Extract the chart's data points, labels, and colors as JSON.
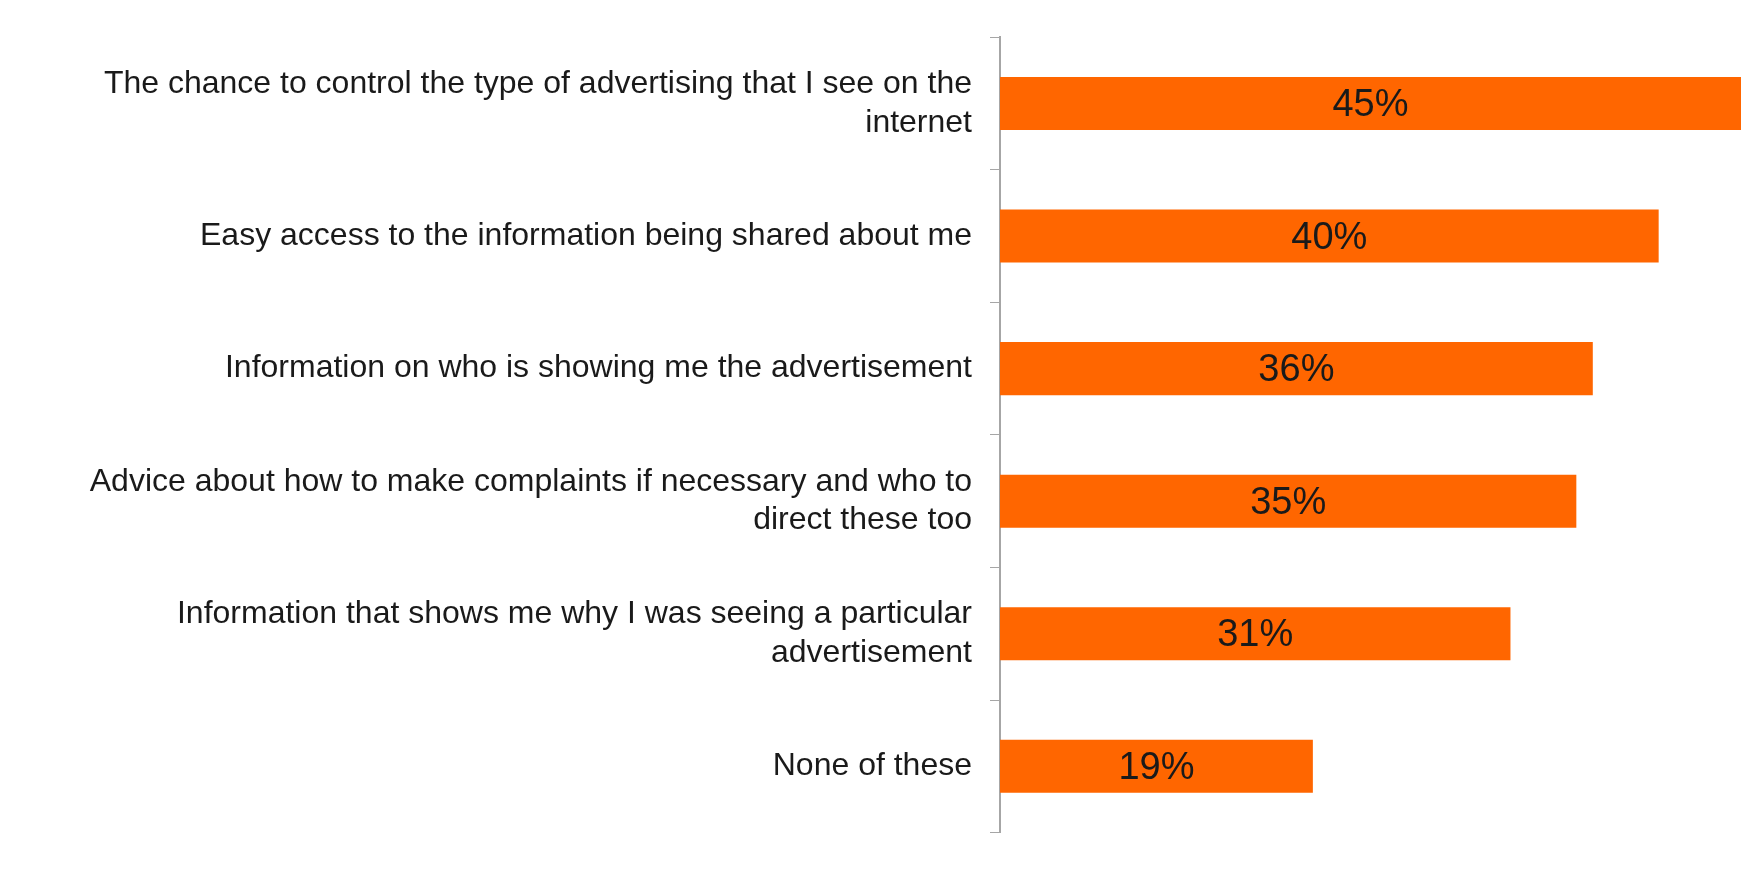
{
  "chart_data": {
    "type": "bar",
    "orientation": "horizontal",
    "categories": [
      "The chance to control the type of advertising that I see on the internet",
      "Easy access to the information being shared about me",
      "Information on who is showing me the advertisement",
      "Advice about how to make complaints if necessary and who to direct these too",
      "Information that shows me why I was seeing a particular advertisement",
      "None of these"
    ],
    "values": [
      45,
      40,
      36,
      35,
      31,
      19
    ],
    "value_labels": [
      "45%",
      "40%",
      "36%",
      "35%",
      "31%",
      "19%"
    ],
    "color": "#ff6600",
    "legend": false,
    "tick_labels": "y"
  }
}
